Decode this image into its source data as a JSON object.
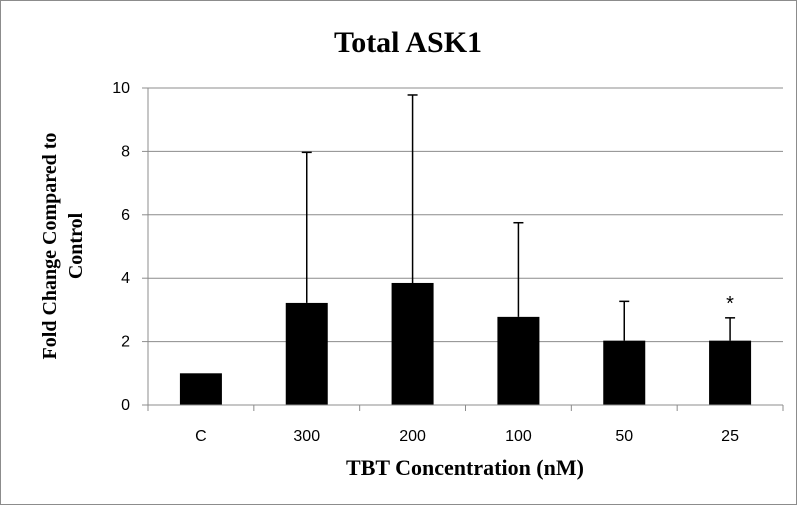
{
  "chart_data": {
    "type": "bar",
    "title": "Total ASK1",
    "xlabel": "TBT Concentration (nM)",
    "ylabel_lines": [
      "Fold Change Compared to",
      "Control"
    ],
    "categories": [
      "C",
      "300",
      "200",
      "100",
      "50",
      "25"
    ],
    "values": [
      1.0,
      3.22,
      3.85,
      2.78,
      2.03,
      2.03
    ],
    "error_upper": [
      0,
      4.75,
      5.93,
      2.97,
      1.24,
      0.72
    ],
    "annotations": [
      "",
      "",
      "",
      "",
      "",
      "*"
    ],
    "ylim": [
      0,
      10
    ],
    "yticks": [
      0,
      2,
      4,
      6,
      8,
      10
    ],
    "grid": true,
    "legend": "none",
    "colors": {
      "bar": "#000000",
      "grid": "#8c8c8c",
      "axis": "#8c8c8c"
    }
  }
}
